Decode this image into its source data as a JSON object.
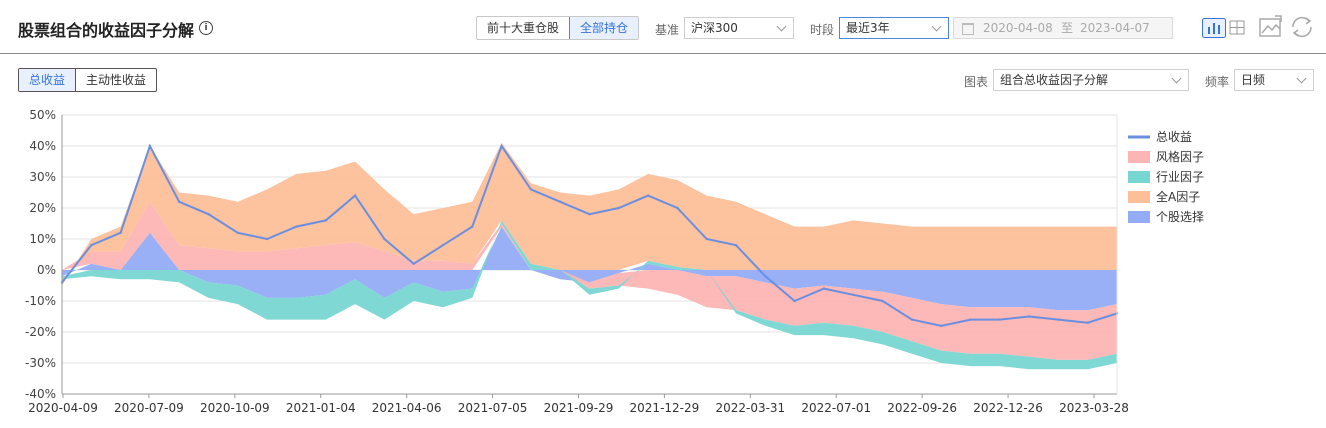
{
  "header": {
    "title": "股票组合的收益因子分解",
    "holding_tabs": [
      {
        "label": "前十大重仓股",
        "active": false
      },
      {
        "label": "全部持仓",
        "active": true
      }
    ],
    "benchmark_label": "基准",
    "benchmark_value": "沪深300",
    "period_label": "时段",
    "period_value": "最近3年",
    "date_start": "2020-04-08",
    "date_sep": "至",
    "date_end": "2023-04-07"
  },
  "subheader": {
    "return_tabs": [
      {
        "label": "总收益",
        "active": true
      },
      {
        "label": "主动性收益",
        "active": false
      }
    ],
    "chart_label": "图表",
    "chart_value": "组合总收益因子分解",
    "freq_label": "频率",
    "freq_value": "日频"
  },
  "icons": [
    "bar-chart-icon",
    "table-icon",
    "export-image-icon",
    "refresh-icon"
  ],
  "colors": {
    "accent": "#3573d9",
    "total_line": "#6b8fe0",
    "style": "#fdb4b4",
    "industry": "#78d6d2",
    "market": "#fdbf99",
    "stock": "#94acf6"
  },
  "chart_data": {
    "type": "area",
    "ylim": [
      -40,
      50
    ],
    "yticks": [
      "50%",
      "40%",
      "30%",
      "20%",
      "10%",
      "0%",
      "-10%",
      "-20%",
      "-30%",
      "-40%"
    ],
    "ytick_values": [
      50,
      40,
      30,
      20,
      10,
      0,
      -10,
      -20,
      -30,
      -40
    ],
    "x_tick_labels": [
      "2020-04-09",
      "2020-07-09",
      "2020-10-09",
      "2021-01-04",
      "2021-04-06",
      "2021-07-05",
      "2021-09-29",
      "2021-12-29",
      "2022-03-31",
      "2022-07-01",
      "2022-09-26",
      "2022-12-26",
      "2023-03-28"
    ],
    "grid": true,
    "legend_position": "right",
    "legend": [
      "总收益",
      "风格因子",
      "行业因子",
      "全A因子",
      "个股选择"
    ],
    "dates": [
      "2020-04-09",
      "2020-05-09",
      "2020-06-09",
      "2020-07-09",
      "2020-08-09",
      "2020-09-09",
      "2020-10-09",
      "2020-11-09",
      "2020-12-09",
      "2021-01-04",
      "2021-02-04",
      "2021-03-04",
      "2021-04-06",
      "2021-05-06",
      "2021-06-06",
      "2021-07-05",
      "2021-08-05",
      "2021-09-05",
      "2021-09-29",
      "2021-10-29",
      "2021-11-29",
      "2021-12-29",
      "2022-01-29",
      "2022-02-28",
      "2022-03-31",
      "2022-04-30",
      "2022-05-31",
      "2022-07-01",
      "2022-08-01",
      "2022-09-01",
      "2022-09-26",
      "2022-10-26",
      "2022-11-26",
      "2022-12-26",
      "2023-01-26",
      "2023-02-26",
      "2023-03-28"
    ],
    "series": [
      {
        "name": "总收益",
        "type": "line",
        "values": [
          -4,
          8,
          12,
          40,
          22,
          18,
          12,
          10,
          14,
          16,
          24,
          10,
          2,
          8,
          14,
          40,
          26,
          22,
          18,
          20,
          24,
          20,
          10,
          8,
          -2,
          -10,
          -6,
          -8,
          -10,
          -16,
          -18,
          -16,
          -16,
          -15,
          -16,
          -17,
          -14
        ]
      },
      {
        "name": "风格因子",
        "type": "area",
        "values": [
          0,
          4,
          6,
          10,
          8,
          7,
          6,
          6,
          7,
          8,
          9,
          6,
          3,
          3,
          2,
          1,
          0,
          0,
          -2,
          -4,
          -6,
          -8,
          -10,
          -11,
          -12,
          -12,
          -12,
          -12,
          -13,
          -14,
          -15,
          -15,
          -15,
          -16,
          -16,
          -16,
          -16
        ]
      },
      {
        "name": "行业因子",
        "type": "area",
        "values": [
          -1,
          -2,
          -3,
          -3,
          -4,
          -5,
          -6,
          -7,
          -7,
          -8,
          -8,
          -7,
          -6,
          -5,
          -3,
          1,
          2,
          0,
          -2,
          -1,
          1,
          1,
          0,
          -1,
          -2,
          -3,
          -4,
          -4,
          -4,
          -4,
          -4,
          -4,
          -4,
          -4,
          -3,
          -3,
          -3
        ]
      },
      {
        "name": "全A因子",
        "type": "area",
        "values": [
          -2,
          4,
          8,
          18,
          17,
          17,
          16,
          20,
          24,
          24,
          26,
          20,
          15,
          17,
          20,
          25,
          26,
          25,
          24,
          26,
          28,
          28,
          24,
          22,
          18,
          14,
          14,
          16,
          15,
          14,
          14,
          14,
          14,
          14,
          14,
          14,
          14
        ]
      },
      {
        "name": "个股选择",
        "type": "area",
        "values": [
          -2,
          2,
          0,
          12,
          0,
          -4,
          -5,
          -9,
          -9,
          -8,
          -3,
          -9,
          -4,
          -7,
          -6,
          14,
          0,
          -3,
          -4,
          -1,
          2,
          0,
          -2,
          -2,
          -4,
          -6,
          -5,
          -6,
          -7,
          -9,
          -11,
          -12,
          -12,
          -12,
          -13,
          -13,
          -11
        ]
      }
    ]
  }
}
